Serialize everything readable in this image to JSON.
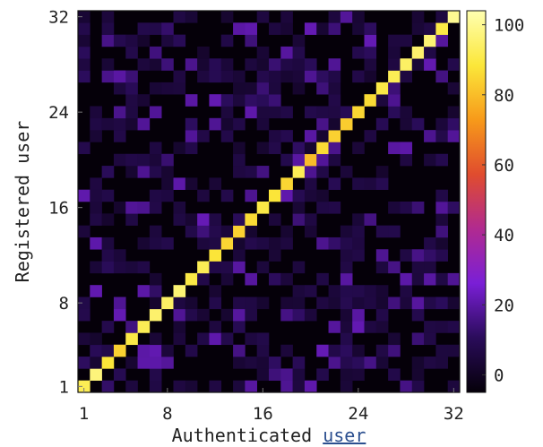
{
  "chart_data": {
    "type": "heatmap",
    "title": "",
    "xlabel": "Authenticated",
    "xlabel_link": "user",
    "ylabel": "Registered user",
    "x_range": [
      1,
      32
    ],
    "y_range": [
      1,
      32
    ],
    "x_ticks": [
      "1",
      "8",
      "16",
      "24",
      "32"
    ],
    "y_ticks": [
      "1",
      "8",
      "16",
      "24",
      "32"
    ],
    "colorbar": {
      "range": [
        -5,
        104
      ],
      "ticks": [
        "0",
        "20",
        "40",
        "60",
        "80",
        "100"
      ],
      "colormap": [
        "#050009",
        "#2a0c5a",
        "#7a1fd6",
        "#b12a90",
        "#e04c2e",
        "#f79a1a",
        "#fbe73a",
        "#ffffb0"
      ]
    },
    "diagonal_values": [
      92,
      97,
      88,
      84,
      90,
      92,
      95,
      94,
      96,
      90,
      92,
      88,
      85,
      84,
      86,
      90,
      88,
      85,
      92,
      80,
      86,
      84,
      83,
      85,
      86,
      90,
      92,
      94,
      95,
      96,
      90,
      100
    ],
    "off_diagonal_level": "near 0 (noise up to ~20)",
    "grid": false
  }
}
